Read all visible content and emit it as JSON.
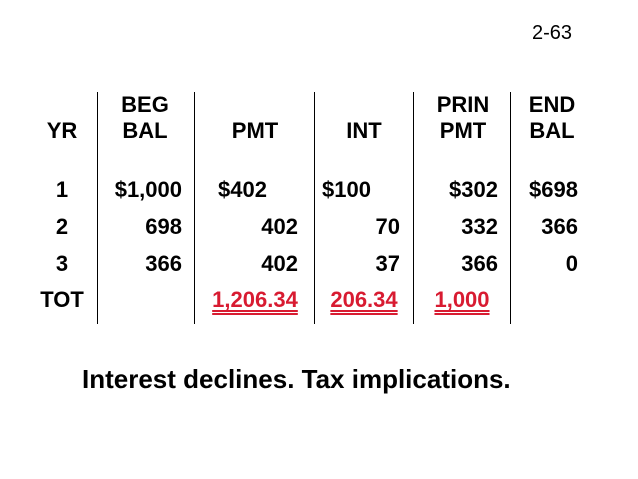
{
  "slide_number": "2-63",
  "table": {
    "headers": {
      "yr": "YR",
      "beg_top": "BEG",
      "beg_bottom": "BAL",
      "pmt": "PMT",
      "int": "INT",
      "prin_top": "PRIN",
      "prin_bottom": "PMT",
      "end_top": "END",
      "end_bottom": "BAL"
    },
    "rows": [
      {
        "yr": "1",
        "beg": "$1,000",
        "pmt": "$402",
        "int": "$100",
        "prin": "$302",
        "end": "$698"
      },
      {
        "yr": "2",
        "beg": "698",
        "pmt": "402",
        "int": "70",
        "prin": "332",
        "end": "366"
      },
      {
        "yr": "3",
        "beg": "366",
        "pmt": "402",
        "int": "37",
        "prin": "366",
        "end": "0"
      }
    ],
    "total": {
      "label": "TOT",
      "pmt": "1,206.34",
      "int": "206.34",
      "prin": "1,000"
    }
  },
  "footer": "Interest declines.  Tax implications.",
  "colors": {
    "highlight": "#d81b31",
    "text": "#000000",
    "background": "#ffffff"
  }
}
